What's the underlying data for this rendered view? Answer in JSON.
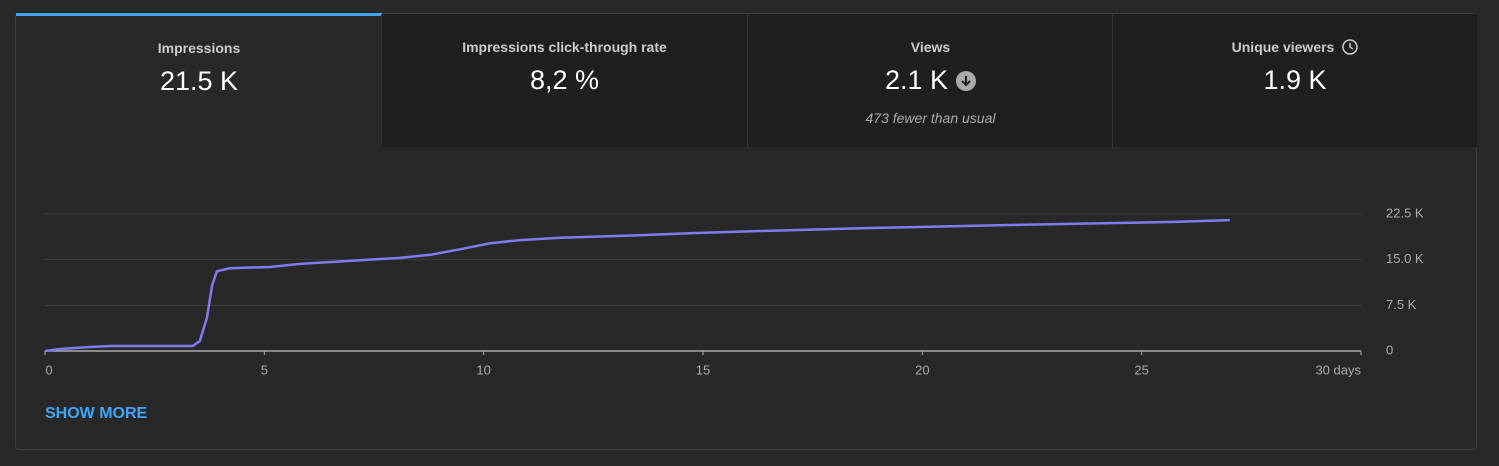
{
  "tabs": [
    {
      "label": "Impressions",
      "value": "21.5 K"
    },
    {
      "label": "Impressions click-through rate",
      "value": "8,2 %"
    },
    {
      "label": "Views",
      "value": "2.1 K",
      "note": "473 fewer than usual"
    },
    {
      "label": "Unique viewers",
      "value": "1.9 K"
    }
  ],
  "chart_data": {
    "type": "line",
    "x": [
      0,
      0.34,
      1.03,
      1.48,
      3.37,
      3.53,
      3.69,
      3.81,
      3.92,
      4.22,
      5.13,
      5.81,
      6.95,
      8.09,
      8.78,
      9.46,
      10.15,
      10.83,
      11.74,
      13.11,
      14.93,
      16.3,
      18.8,
      22.0,
      24.28,
      25.76,
      27.01
    ],
    "series": [
      {
        "name": "Impressions",
        "color": "#8479ee",
        "values": [
          0,
          330,
          660,
          820,
          820,
          1640,
          5400,
          10800,
          13100,
          13600,
          13800,
          14300,
          14800,
          15300,
          15800,
          16700,
          17700,
          18200,
          18600,
          18900,
          19400,
          19700,
          20200,
          20700,
          21000,
          21200,
          21500
        ]
      }
    ],
    "xlim": [
      0,
      30
    ],
    "xticks": [
      0,
      5,
      10,
      15,
      20,
      25,
      {
        "value": 30,
        "label": "30 days"
      }
    ],
    "ylim": [
      0,
      22500
    ],
    "yticks": [
      {
        "value": 0,
        "label": "0"
      },
      {
        "value": 7500,
        "label": "7.5 K"
      },
      {
        "value": 15000,
        "label": "15.0 K"
      },
      {
        "value": 22500,
        "label": "22.5 K"
      }
    ],
    "grid": true
  },
  "link": "SHOW MORE"
}
